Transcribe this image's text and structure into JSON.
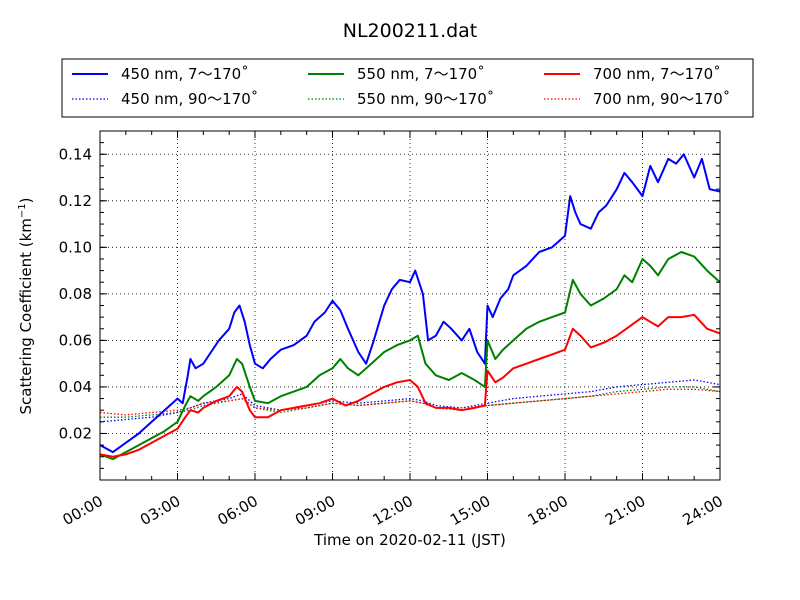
{
  "chart_data": {
    "type": "line",
    "title": "NL200211.dat",
    "xlabel": "Time on 2020-02-11 (JST)",
    "ylabel": "Scattering Coefficient (km",
    "ylabel_exponent": "−1",
    "ylabel_close": ")",
    "x_ticks": [
      "00:00",
      "03:00",
      "06:00",
      "09:00",
      "12:00",
      "15:00",
      "18:00",
      "21:00",
      "24:00"
    ],
    "x_tick_hours": [
      0,
      3,
      6,
      9,
      12,
      15,
      18,
      21,
      24
    ],
    "y_ticks": [
      "0.02",
      "0.04",
      "0.06",
      "0.08",
      "0.10",
      "0.12",
      "0.14"
    ],
    "y_tick_values": [
      0.02,
      0.04,
      0.06,
      0.08,
      0.1,
      0.12,
      0.14
    ],
    "xlim": [
      0,
      24
    ],
    "ylim": [
      0.0,
      0.15
    ],
    "grid": true,
    "legend": {
      "placement": "top",
      "columns": 3
    },
    "series": [
      {
        "name": "450 nm, 7～170˚",
        "color": "#0000ff",
        "style": "solid",
        "x": [
          0,
          0.5,
          1,
          1.5,
          2,
          2.5,
          3,
          3.2,
          3.4,
          3.5,
          3.7,
          4,
          4.3,
          4.6,
          5,
          5.2,
          5.4,
          5.6,
          5.8,
          6,
          6.3,
          6.6,
          7,
          7.5,
          8,
          8.3,
          8.7,
          9,
          9.3,
          9.6,
          10,
          10.3,
          10.6,
          11,
          11.3,
          11.6,
          12,
          12.2,
          12.5,
          12.7,
          13,
          13.3,
          13.6,
          14,
          14.3,
          14.6,
          14.9,
          15,
          15.2,
          15.5,
          15.8,
          16,
          16.5,
          17,
          17.5,
          18,
          18.2,
          18.4,
          18.6,
          19,
          19.3,
          19.6,
          20,
          20.3,
          20.6,
          21,
          21.3,
          21.6,
          22,
          22.3,
          22.6,
          23,
          23.3,
          23.6,
          24
        ],
        "values": [
          0.015,
          0.012,
          0.016,
          0.02,
          0.025,
          0.03,
          0.035,
          0.033,
          0.045,
          0.052,
          0.048,
          0.05,
          0.055,
          0.06,
          0.065,
          0.072,
          0.075,
          0.068,
          0.058,
          0.05,
          0.048,
          0.052,
          0.056,
          0.058,
          0.062,
          0.068,
          0.072,
          0.077,
          0.073,
          0.065,
          0.055,
          0.05,
          0.06,
          0.075,
          0.082,
          0.086,
          0.085,
          0.09,
          0.08,
          0.06,
          0.062,
          0.068,
          0.065,
          0.06,
          0.065,
          0.055,
          0.05,
          0.075,
          0.07,
          0.078,
          0.082,
          0.088,
          0.092,
          0.098,
          0.1,
          0.105,
          0.122,
          0.115,
          0.11,
          0.108,
          0.115,
          0.118,
          0.125,
          0.132,
          0.128,
          0.122,
          0.135,
          0.128,
          0.138,
          0.136,
          0.14,
          0.13,
          0.138,
          0.125,
          0.124
        ]
      },
      {
        "name": "450 nm, 90～170˚",
        "color": "#0000ff",
        "style": "dotted",
        "x": [
          0,
          1,
          2,
          3,
          3.5,
          4,
          5,
          5.5,
          6,
          7,
          8,
          9,
          10,
          11,
          12,
          12.5,
          13,
          14,
          15,
          16,
          17,
          18,
          19,
          20,
          21,
          22,
          23,
          24
        ],
        "values": [
          0.025,
          0.026,
          0.027,
          0.029,
          0.031,
          0.033,
          0.035,
          0.037,
          0.032,
          0.03,
          0.032,
          0.034,
          0.033,
          0.034,
          0.035,
          0.034,
          0.032,
          0.031,
          0.033,
          0.035,
          0.036,
          0.037,
          0.038,
          0.04,
          0.041,
          0.042,
          0.043,
          0.041
        ]
      },
      {
        "name": "550 nm, 7～170˚",
        "color": "#008000",
        "style": "solid",
        "x": [
          0,
          0.5,
          1,
          1.5,
          2,
          2.5,
          3,
          3.3,
          3.5,
          3.8,
          4,
          4.5,
          5,
          5.3,
          5.5,
          5.8,
          6,
          6.5,
          7,
          7.5,
          8,
          8.5,
          9,
          9.3,
          9.6,
          10,
          10.5,
          11,
          11.5,
          12,
          12.3,
          12.6,
          13,
          13.5,
          14,
          14.5,
          14.9,
          15,
          15.3,
          15.6,
          16,
          16.5,
          17,
          17.5,
          18,
          18.3,
          18.6,
          19,
          19.5,
          20,
          20.3,
          20.6,
          21,
          21.3,
          21.6,
          22,
          22.5,
          23,
          23.5,
          24
        ],
        "values": [
          0.011,
          0.009,
          0.012,
          0.015,
          0.018,
          0.021,
          0.025,
          0.032,
          0.036,
          0.034,
          0.036,
          0.04,
          0.045,
          0.052,
          0.05,
          0.04,
          0.034,
          0.033,
          0.036,
          0.038,
          0.04,
          0.045,
          0.048,
          0.052,
          0.048,
          0.045,
          0.05,
          0.055,
          0.058,
          0.06,
          0.062,
          0.05,
          0.045,
          0.043,
          0.046,
          0.043,
          0.04,
          0.06,
          0.052,
          0.056,
          0.06,
          0.065,
          0.068,
          0.07,
          0.072,
          0.086,
          0.08,
          0.075,
          0.078,
          0.082,
          0.088,
          0.085,
          0.095,
          0.092,
          0.088,
          0.095,
          0.098,
          0.096,
          0.09,
          0.085
        ]
      },
      {
        "name": "550 nm, 90～170˚",
        "color": "#008000",
        "style": "dotted",
        "x": [
          0,
          1,
          2,
          3,
          3.5,
          4,
          5,
          5.5,
          6,
          7,
          8,
          9,
          10,
          11,
          12,
          12.5,
          13,
          14,
          15,
          16,
          17,
          18,
          19,
          20,
          21,
          22,
          23,
          24
        ],
        "values": [
          0.027,
          0.027,
          0.028,
          0.029,
          0.03,
          0.032,
          0.034,
          0.035,
          0.031,
          0.029,
          0.031,
          0.033,
          0.032,
          0.033,
          0.034,
          0.033,
          0.031,
          0.03,
          0.032,
          0.033,
          0.034,
          0.035,
          0.036,
          0.038,
          0.039,
          0.04,
          0.04,
          0.038
        ]
      },
      {
        "name": "700 nm, 7～170˚",
        "color": "#ff0000",
        "style": "solid",
        "x": [
          0,
          0.5,
          1,
          1.5,
          2,
          2.5,
          3,
          3.3,
          3.5,
          3.8,
          4,
          4.5,
          5,
          5.3,
          5.5,
          5.8,
          6,
          6.5,
          7,
          7.5,
          8,
          8.5,
          9,
          9.5,
          10,
          10.5,
          11,
          11.5,
          12,
          12.3,
          12.6,
          13,
          13.5,
          14,
          14.5,
          14.9,
          15,
          15.3,
          15.6,
          16,
          16.5,
          17,
          17.5,
          18,
          18.3,
          18.6,
          19,
          19.5,
          20,
          20.5,
          21,
          21.3,
          21.6,
          22,
          22.5,
          23,
          23.5,
          24
        ],
        "values": [
          0.011,
          0.01,
          0.011,
          0.013,
          0.016,
          0.019,
          0.022,
          0.027,
          0.03,
          0.029,
          0.031,
          0.034,
          0.036,
          0.04,
          0.038,
          0.03,
          0.027,
          0.027,
          0.03,
          0.031,
          0.032,
          0.033,
          0.035,
          0.032,
          0.034,
          0.037,
          0.04,
          0.042,
          0.043,
          0.04,
          0.033,
          0.031,
          0.031,
          0.03,
          0.031,
          0.032,
          0.047,
          0.042,
          0.044,
          0.048,
          0.05,
          0.052,
          0.054,
          0.056,
          0.065,
          0.062,
          0.057,
          0.059,
          0.062,
          0.066,
          0.07,
          0.068,
          0.066,
          0.07,
          0.07,
          0.071,
          0.065,
          0.063
        ]
      },
      {
        "name": "700 nm, 90～170˚",
        "color": "#ff0000",
        "style": "dotted",
        "x": [
          0,
          1,
          2,
          3,
          3.5,
          4,
          5,
          5.5,
          6,
          7,
          8,
          9,
          10,
          11,
          12,
          12.5,
          13,
          14,
          15,
          16,
          17,
          18,
          19,
          20,
          21,
          22,
          23,
          24
        ],
        "values": [
          0.029,
          0.028,
          0.029,
          0.03,
          0.031,
          0.033,
          0.034,
          0.035,
          0.031,
          0.03,
          0.031,
          0.033,
          0.032,
          0.033,
          0.034,
          0.033,
          0.031,
          0.031,
          0.032,
          0.033,
          0.034,
          0.035,
          0.036,
          0.037,
          0.038,
          0.039,
          0.039,
          0.038
        ]
      }
    ]
  }
}
